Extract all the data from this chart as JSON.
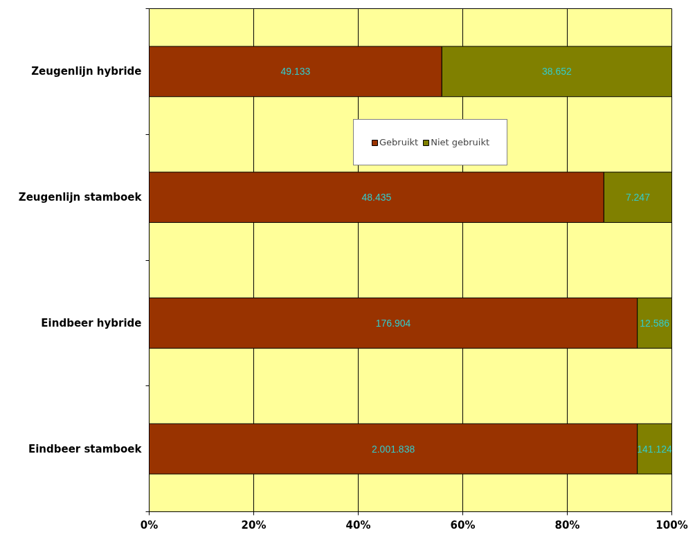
{
  "chart_data": {
    "type": "bar",
    "orientation": "horizontal",
    "stacked": true,
    "categories": [
      "Zeugenlijn hybride",
      "Zeugenlijn stamboek",
      "Eindbeer hybride",
      "Eindbeer stamboek"
    ],
    "series": [
      {
        "name": "Gebruikt",
        "color": "#993300",
        "values": [
          56.0,
          87.0,
          93.4,
          93.4
        ]
      },
      {
        "name": "Niet gebruikt",
        "color": "#808000",
        "values": [
          44.0,
          13.0,
          6.6,
          6.6
        ]
      }
    ],
    "annotations": [
      "49.133",
      "38.652",
      "48.435",
      "7.247",
      "176.904",
      "12.586",
      "2.001.838",
      "141.124"
    ],
    "xlim": [
      0,
      100
    ],
    "xticks": [
      {
        "value": 0,
        "label": "0%"
      },
      {
        "value": 20,
        "label": "20%"
      },
      {
        "value": 40,
        "label": "40%"
      },
      {
        "value": 60,
        "label": "60%"
      },
      {
        "value": 80,
        "label": "80%"
      },
      {
        "value": 100,
        "label": "100%"
      }
    ],
    "grid": "x",
    "legend": "top"
  }
}
